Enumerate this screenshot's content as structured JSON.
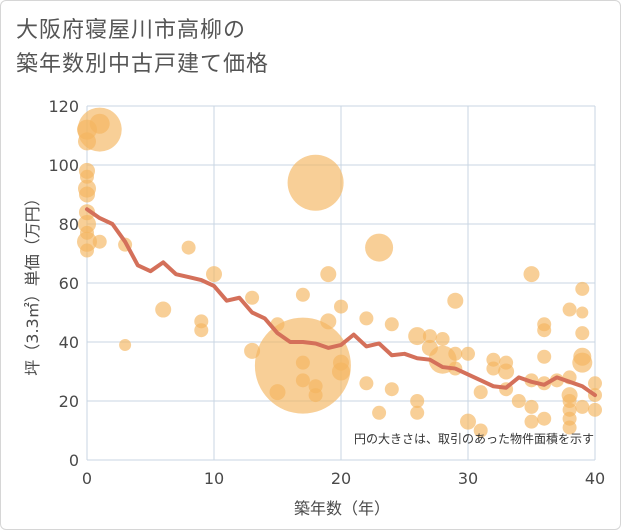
{
  "title_lines": [
    "大阪府寝屋川市高柳の",
    "築年数別中古戸建て価格"
  ],
  "chart_data": {
    "type": "scatter",
    "title": "大阪府寝屋川市高柳の築年数別中古戸建て価格",
    "xlabel": "築年数（年）",
    "ylabel": "坪（3.3㎡）単価（万円）",
    "xlim": [
      0,
      40
    ],
    "ylim": [
      0,
      120
    ],
    "xticks": [
      0,
      10,
      20,
      30,
      40
    ],
    "yticks": [
      0,
      20,
      40,
      60,
      80,
      100,
      120
    ],
    "grid": true,
    "annotation": "円の大きさは、取引のあった物件面積を示す",
    "colors": {
      "bubble": "#f5b560",
      "line": "#d4705a",
      "grid": "#c9d6e3"
    },
    "bubbles": [
      {
        "x": 0,
        "y": 112,
        "r": 10
      },
      {
        "x": 0,
        "y": 108,
        "r": 9
      },
      {
        "x": 0,
        "y": 98,
        "r": 8
      },
      {
        "x": 0,
        "y": 96,
        "r": 7
      },
      {
        "x": 0,
        "y": 92,
        "r": 9
      },
      {
        "x": 0,
        "y": 90,
        "r": 8
      },
      {
        "x": 0,
        "y": 84,
        "r": 8
      },
      {
        "x": 0,
        "y": 80,
        "r": 9
      },
      {
        "x": 0,
        "y": 77,
        "r": 7
      },
      {
        "x": 0,
        "y": 74,
        "r": 10
      },
      {
        "x": 0,
        "y": 71,
        "r": 7
      },
      {
        "x": 1,
        "y": 112,
        "r": 22
      },
      {
        "x": 1,
        "y": 114,
        "r": 10
      },
      {
        "x": 1,
        "y": 74,
        "r": 7
      },
      {
        "x": 3,
        "y": 73,
        "r": 7
      },
      {
        "x": 3,
        "y": 39,
        "r": 6
      },
      {
        "x": 6,
        "y": 51,
        "r": 8
      },
      {
        "x": 8,
        "y": 72,
        "r": 7
      },
      {
        "x": 9,
        "y": 47,
        "r": 7
      },
      {
        "x": 9,
        "y": 44,
        "r": 7
      },
      {
        "x": 10,
        "y": 63,
        "r": 8
      },
      {
        "x": 13,
        "y": 55,
        "r": 7
      },
      {
        "x": 13,
        "y": 37,
        "r": 8
      },
      {
        "x": 15,
        "y": 46,
        "r": 7
      },
      {
        "x": 15,
        "y": 23,
        "r": 8
      },
      {
        "x": 17,
        "y": 32,
        "r": 48
      },
      {
        "x": 17,
        "y": 56,
        "r": 7
      },
      {
        "x": 17,
        "y": 33,
        "r": 7
      },
      {
        "x": 17,
        "y": 27,
        "r": 7
      },
      {
        "x": 18,
        "y": 22,
        "r": 7
      },
      {
        "x": 18,
        "y": 25,
        "r": 7
      },
      {
        "x": 18,
        "y": 94,
        "r": 28
      },
      {
        "x": 19,
        "y": 63,
        "r": 8
      },
      {
        "x": 19,
        "y": 47,
        "r": 8
      },
      {
        "x": 20,
        "y": 52,
        "r": 7
      },
      {
        "x": 20,
        "y": 33,
        "r": 8
      },
      {
        "x": 20,
        "y": 30,
        "r": 9
      },
      {
        "x": 22,
        "y": 48,
        "r": 7
      },
      {
        "x": 22,
        "y": 26,
        "r": 7
      },
      {
        "x": 23,
        "y": 72,
        "r": 14
      },
      {
        "x": 23,
        "y": 16,
        "r": 7
      },
      {
        "x": 24,
        "y": 46,
        "r": 7
      },
      {
        "x": 24,
        "y": 24,
        "r": 7
      },
      {
        "x": 26,
        "y": 42,
        "r": 9
      },
      {
        "x": 26,
        "y": 20,
        "r": 7
      },
      {
        "x": 26,
        "y": 16,
        "r": 7
      },
      {
        "x": 27,
        "y": 42,
        "r": 7
      },
      {
        "x": 27,
        "y": 38,
        "r": 8
      },
      {
        "x": 28,
        "y": 41,
        "r": 7
      },
      {
        "x": 28,
        "y": 34,
        "r": 14
      },
      {
        "x": 29,
        "y": 54,
        "r": 8
      },
      {
        "x": 29,
        "y": 36,
        "r": 7
      },
      {
        "x": 29,
        "y": 31,
        "r": 7
      },
      {
        "x": 30,
        "y": 36,
        "r": 7
      },
      {
        "x": 30,
        "y": 13,
        "r": 8
      },
      {
        "x": 31,
        "y": 10,
        "r": 7
      },
      {
        "x": 31,
        "y": 23,
        "r": 7
      },
      {
        "x": 32,
        "y": 34,
        "r": 7
      },
      {
        "x": 32,
        "y": 31,
        "r": 7
      },
      {
        "x": 33,
        "y": 33,
        "r": 7
      },
      {
        "x": 33,
        "y": 30,
        "r": 8
      },
      {
        "x": 33,
        "y": 24,
        "r": 7
      },
      {
        "x": 34,
        "y": 20,
        "r": 7
      },
      {
        "x": 35,
        "y": 63,
        "r": 8
      },
      {
        "x": 35,
        "y": 27,
        "r": 7
      },
      {
        "x": 35,
        "y": 18,
        "r": 7
      },
      {
        "x": 35,
        "y": 13,
        "r": 7
      },
      {
        "x": 36,
        "y": 46,
        "r": 7
      },
      {
        "x": 36,
        "y": 44,
        "r": 7
      },
      {
        "x": 36,
        "y": 35,
        "r": 7
      },
      {
        "x": 36,
        "y": 26,
        "r": 7
      },
      {
        "x": 36,
        "y": 14,
        "r": 7
      },
      {
        "x": 37,
        "y": 27,
        "r": 7
      },
      {
        "x": 38,
        "y": 51,
        "r": 7
      },
      {
        "x": 38,
        "y": 28,
        "r": 7
      },
      {
        "x": 38,
        "y": 22,
        "r": 8
      },
      {
        "x": 38,
        "y": 20,
        "r": 7
      },
      {
        "x": 38,
        "y": 17,
        "r": 7
      },
      {
        "x": 38,
        "y": 14,
        "r": 7
      },
      {
        "x": 38,
        "y": 11,
        "r": 7
      },
      {
        "x": 39,
        "y": 58,
        "r": 7
      },
      {
        "x": 39,
        "y": 50,
        "r": 6
      },
      {
        "x": 39,
        "y": 43,
        "r": 7
      },
      {
        "x": 39,
        "y": 35,
        "r": 9
      },
      {
        "x": 39,
        "y": 33,
        "r": 10
      },
      {
        "x": 39,
        "y": 18,
        "r": 7
      },
      {
        "x": 40,
        "y": 26,
        "r": 7
      },
      {
        "x": 40,
        "y": 22,
        "r": 7
      },
      {
        "x": 40,
        "y": 17,
        "r": 7
      }
    ],
    "trend": {
      "x": [
        0,
        1,
        2,
        3,
        4,
        5,
        6,
        7,
        8,
        9,
        10,
        11,
        12,
        13,
        14,
        15,
        16,
        17,
        18,
        19,
        20,
        21,
        22,
        23,
        24,
        25,
        26,
        27,
        28,
        29,
        30,
        31,
        32,
        33,
        34,
        35,
        36,
        37,
        38,
        39,
        40
      ],
      "y": [
        85,
        82,
        80,
        74,
        66,
        64,
        67,
        63,
        62,
        61,
        59,
        54,
        55,
        50,
        48,
        43,
        40,
        40,
        39.5,
        38,
        39,
        42.5,
        38.5,
        39.5,
        35.5,
        36,
        34.5,
        34,
        31.5,
        31,
        29,
        27,
        25,
        24.5,
        28,
        26.5,
        25.5,
        28,
        26.5,
        25,
        22
      ]
    }
  }
}
